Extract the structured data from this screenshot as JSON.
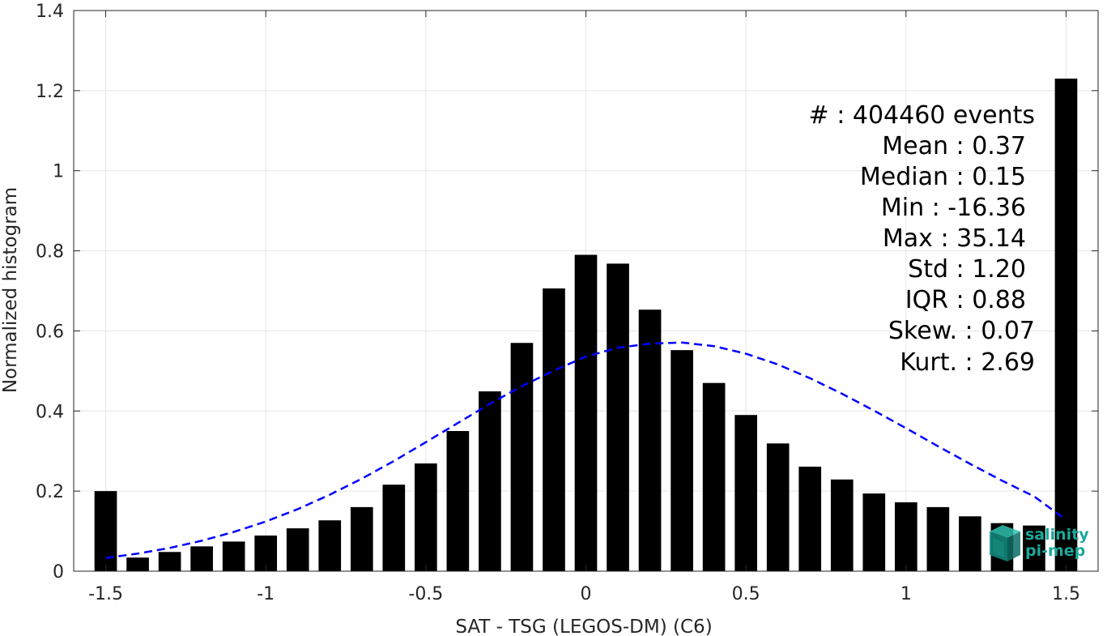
{
  "chart_data": {
    "type": "bar",
    "xlabel": "SAT - TSG (LEGOS-DM) (C6)",
    "ylabel": "Normalized histogram",
    "xlim": [
      -1.6,
      1.6
    ],
    "ylim": [
      0,
      1.4
    ],
    "grid": true,
    "x_ticks": [
      -1.5,
      -1,
      -0.5,
      0,
      0.5,
      1,
      1.5
    ],
    "x_tick_labels": [
      "-1.5",
      "-1",
      "-0.5",
      "0",
      "0.5",
      "1",
      "1.5"
    ],
    "y_ticks": [
      0,
      0.2,
      0.4,
      0.6,
      0.8,
      1,
      1.2,
      1.4
    ],
    "y_tick_labels": [
      "0",
      "0.2",
      "0.4",
      "0.6",
      "0.8",
      "1",
      "1.2",
      "1.4"
    ],
    "bar_width": 0.07,
    "bars": {
      "x": [
        -1.5,
        -1.4,
        -1.3,
        -1.2,
        -1.1,
        -1.0,
        -0.9,
        -0.8,
        -0.7,
        -0.6,
        -0.5,
        -0.4,
        -0.3,
        -0.2,
        -0.1,
        0.0,
        0.1,
        0.2,
        0.3,
        0.4,
        0.5,
        0.6,
        0.7,
        0.8,
        0.9,
        1.0,
        1.1,
        1.2,
        1.3,
        1.4,
        1.5
      ],
      "values": [
        0.2,
        0.034,
        0.048,
        0.062,
        0.074,
        0.089,
        0.107,
        0.127,
        0.16,
        0.216,
        0.269,
        0.35,
        0.449,
        0.57,
        0.706,
        0.79,
        0.768,
        0.653,
        0.552,
        0.47,
        0.39,
        0.319,
        0.261,
        0.229,
        0.194,
        0.172,
        0.16,
        0.137,
        0.12,
        0.114,
        1.23
      ],
      "color": "#000000"
    },
    "fit_curve": {
      "style": "dashed",
      "color": "#0000ff",
      "x": [
        -1.5,
        -1.4,
        -1.3,
        -1.2,
        -1.1,
        -1.0,
        -0.9,
        -0.8,
        -0.7,
        -0.6,
        -0.5,
        -0.4,
        -0.3,
        -0.2,
        -0.1,
        0.0,
        0.1,
        0.2,
        0.3,
        0.4,
        0.5,
        0.6,
        0.7,
        0.8,
        0.9,
        1.0,
        1.1,
        1.2,
        1.3,
        1.4,
        1.5
      ],
      "values": [
        0.033,
        0.044,
        0.058,
        0.076,
        0.098,
        0.124,
        0.155,
        0.191,
        0.231,
        0.275,
        0.322,
        0.37,
        0.418,
        0.462,
        0.501,
        0.536,
        0.558,
        0.568,
        0.571,
        0.562,
        0.543,
        0.516,
        0.482,
        0.443,
        0.401,
        0.357,
        0.312,
        0.268,
        0.226,
        0.187,
        0.128
      ]
    }
  },
  "stats": {
    "count": "#  : 404460 events",
    "mean": "Mean : 0.37",
    "median": "Median : 0.15",
    "min": "Min : -16.36",
    "max": "Max : 35.14",
    "std": "Std : 1.20",
    "iqr": "IQR : 0.88",
    "skew": "Skew. : 0.07",
    "kurt": "Kurt. : 2.69"
  },
  "logo": {
    "line1": "salinity",
    "line2": "pi-mep",
    "color": "#1aa89a"
  }
}
